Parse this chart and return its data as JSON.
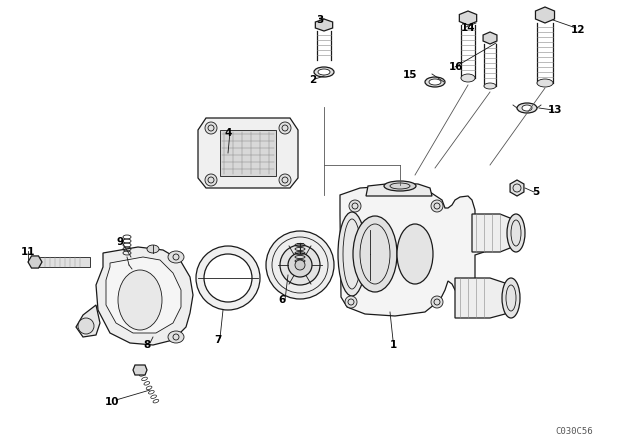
{
  "bg_color": "#ffffff",
  "line_color": "#1a1a1a",
  "figsize": [
    6.4,
    4.48
  ],
  "dpi": 100,
  "diagram_code": "C030C56",
  "part_labels": [
    [
      393,
      345,
      "1"
    ],
    [
      313,
      80,
      "2"
    ],
    [
      320,
      20,
      "3"
    ],
    [
      228,
      133,
      "4"
    ],
    [
      536,
      192,
      "5"
    ],
    [
      282,
      300,
      "6"
    ],
    [
      218,
      340,
      "7"
    ],
    [
      147,
      345,
      "8"
    ],
    [
      120,
      242,
      "9"
    ],
    [
      112,
      402,
      "10"
    ],
    [
      28,
      252,
      "11"
    ],
    [
      578,
      30,
      "12"
    ],
    [
      555,
      110,
      "13"
    ],
    [
      468,
      28,
      "14"
    ],
    [
      410,
      75,
      "15"
    ],
    [
      456,
      67,
      "16"
    ]
  ]
}
